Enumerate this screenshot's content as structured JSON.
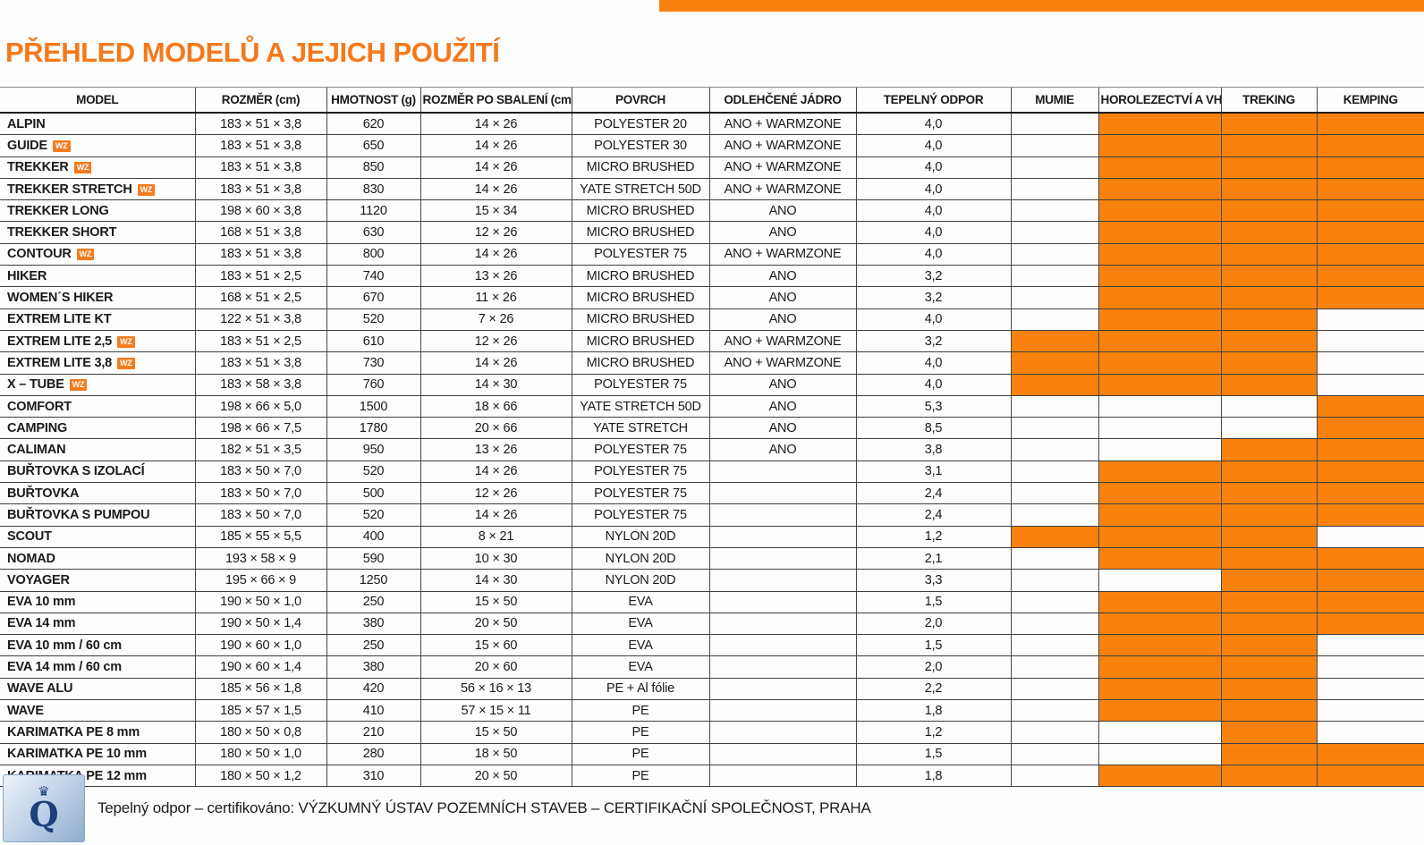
{
  "page": {
    "title": "PŘEHLED MODELŮ A JEJICH POUŽITÍ"
  },
  "colors": {
    "accent_orange": "#F4791B",
    "cell_orange": "#F8820D",
    "badge_orange": "#F47B20",
    "logo_blue": "#1d3f7a"
  },
  "badge_label": "WZ",
  "icons": {
    "crown": "♛",
    "quality_letter": "Q"
  },
  "table": {
    "columns": [
      "MODEL",
      "ROZMĚR (cm)",
      "HMOTNOST (g)",
      "ROZMĚR PO SBALENÍ (cm)",
      "POVRCH",
      "ODLEHČENÉ JÁDRO",
      "TEPELNÝ ODPOR",
      "MUMIE",
      "HOROLEZECTVÍ A VHT",
      "TREKING",
      "KEMPING"
    ],
    "rows": [
      {
        "model": "ALPIN",
        "wz": false,
        "rozmer": "183 × 51 × 3,8",
        "hmotnost": "620",
        "sbaleni": "14 × 26",
        "povrch": "POLYESTER 20",
        "jadro": "ANO + WARMZONE",
        "odpor": "4,0",
        "mumie": false,
        "horolezectvi": true,
        "treking": true,
        "kemping": true
      },
      {
        "model": "GUIDE",
        "wz": true,
        "rozmer": "183 × 51 × 3,8",
        "hmotnost": "650",
        "sbaleni": "14 × 26",
        "povrch": "POLYESTER 30",
        "jadro": "ANO + WARMZONE",
        "odpor": "4,0",
        "mumie": false,
        "horolezectvi": true,
        "treking": true,
        "kemping": true
      },
      {
        "model": "TREKKER",
        "wz": true,
        "rozmer": "183 × 51 × 3,8",
        "hmotnost": "850",
        "sbaleni": "14 × 26",
        "povrch": "MICRO BRUSHED",
        "jadro": "ANO + WARMZONE",
        "odpor": "4,0",
        "mumie": false,
        "horolezectvi": true,
        "treking": true,
        "kemping": true
      },
      {
        "model": "TREKKER STRETCH",
        "wz": true,
        "rozmer": "183 × 51 × 3,8",
        "hmotnost": "830",
        "sbaleni": "14 × 26",
        "povrch": "YATE STRETCH 50D",
        "jadro": "ANO + WARMZONE",
        "odpor": "4,0",
        "mumie": false,
        "horolezectvi": true,
        "treking": true,
        "kemping": true
      },
      {
        "model": "TREKKER LONG",
        "wz": false,
        "rozmer": "198 × 60 × 3,8",
        "hmotnost": "1120",
        "sbaleni": "15 × 34",
        "povrch": "MICRO BRUSHED",
        "jadro": "ANO",
        "odpor": "4,0",
        "mumie": false,
        "horolezectvi": true,
        "treking": true,
        "kemping": true
      },
      {
        "model": "TREKKER SHORT",
        "wz": false,
        "rozmer": "168 × 51 × 3,8",
        "hmotnost": "630",
        "sbaleni": "12 × 26",
        "povrch": "MICRO BRUSHED",
        "jadro": "ANO",
        "odpor": "4,0",
        "mumie": false,
        "horolezectvi": true,
        "treking": true,
        "kemping": true
      },
      {
        "model": "CONTOUR",
        "wz": true,
        "rozmer": "183 × 51 × 3,8",
        "hmotnost": "800",
        "sbaleni": "14 × 26",
        "povrch": "POLYESTER 75",
        "jadro": "ANO + WARMZONE",
        "odpor": "4,0",
        "mumie": false,
        "horolezectvi": true,
        "treking": true,
        "kemping": true
      },
      {
        "model": "HIKER",
        "wz": false,
        "rozmer": "183 × 51 × 2,5",
        "hmotnost": "740",
        "sbaleni": "13 × 26",
        "povrch": "MICRO BRUSHED",
        "jadro": "ANO",
        "odpor": "3,2",
        "mumie": false,
        "horolezectvi": true,
        "treking": true,
        "kemping": true
      },
      {
        "model": "WOMEN´S HIKER",
        "wz": false,
        "rozmer": "168 × 51 × 2,5",
        "hmotnost": "670",
        "sbaleni": "11 × 26",
        "povrch": "MICRO BRUSHED",
        "jadro": "ANO",
        "odpor": "3,2",
        "mumie": false,
        "horolezectvi": true,
        "treking": true,
        "kemping": true
      },
      {
        "model": "EXTREM LITE KT",
        "wz": false,
        "rozmer": "122 × 51 × 3,8",
        "hmotnost": "520",
        "sbaleni": "7 × 26",
        "povrch": "MICRO BRUSHED",
        "jadro": "ANO",
        "odpor": "4,0",
        "mumie": false,
        "horolezectvi": true,
        "treking": true,
        "kemping": false
      },
      {
        "model": "EXTREM LITE 2,5",
        "wz": true,
        "rozmer": "183 × 51 × 2,5",
        "hmotnost": "610",
        "sbaleni": "12 × 26",
        "povrch": "MICRO BRUSHED",
        "jadro": "ANO + WARMZONE",
        "odpor": "3,2",
        "mumie": true,
        "horolezectvi": true,
        "treking": true,
        "kemping": false
      },
      {
        "model": "EXTREM LITE 3,8",
        "wz": true,
        "rozmer": "183 × 51 × 3,8",
        "hmotnost": "730",
        "sbaleni": "14 × 26",
        "povrch": "MICRO BRUSHED",
        "jadro": "ANO + WARMZONE",
        "odpor": "4,0",
        "mumie": true,
        "horolezectvi": true,
        "treking": true,
        "kemping": false
      },
      {
        "model": "X – TUBE",
        "wz": true,
        "rozmer": "183 × 58 × 3,8",
        "hmotnost": "760",
        "sbaleni": "14 × 30",
        "povrch": "POLYESTER 75",
        "jadro": "ANO",
        "odpor": "4,0",
        "mumie": true,
        "horolezectvi": true,
        "treking": true,
        "kemping": false
      },
      {
        "model": "COMFORT",
        "wz": false,
        "rozmer": "198 × 66 × 5,0",
        "hmotnost": "1500",
        "sbaleni": "18 × 66",
        "povrch": "YATE STRETCH 50D",
        "jadro": "ANO",
        "odpor": "5,3",
        "mumie": false,
        "horolezectvi": false,
        "treking": false,
        "kemping": true
      },
      {
        "model": "CAMPING",
        "wz": false,
        "rozmer": "198 × 66 × 7,5",
        "hmotnost": "1780",
        "sbaleni": "20 × 66",
        "povrch": "YATE STRETCH",
        "jadro": "ANO",
        "odpor": "8,5",
        "mumie": false,
        "horolezectvi": false,
        "treking": false,
        "kemping": true
      },
      {
        "model": "CALIMAN",
        "wz": false,
        "rozmer": "182 × 51 × 3,5",
        "hmotnost": "950",
        "sbaleni": "13 × 26",
        "povrch": "POLYESTER 75",
        "jadro": "ANO",
        "odpor": "3,8",
        "mumie": false,
        "horolezectvi": false,
        "treking": true,
        "kemping": true
      },
      {
        "model": "BUŘTOVKA S IZOLACÍ",
        "wz": false,
        "rozmer": "183 × 50 × 7,0",
        "hmotnost": "520",
        "sbaleni": "14 × 26",
        "povrch": "POLYESTER 75",
        "jadro": "",
        "odpor": "3,1",
        "mumie": false,
        "horolezectvi": true,
        "treking": true,
        "kemping": true
      },
      {
        "model": "BUŘTOVKA",
        "wz": false,
        "rozmer": "183 × 50 × 7,0",
        "hmotnost": "500",
        "sbaleni": "12 × 26",
        "povrch": "POLYESTER 75",
        "jadro": "",
        "odpor": "2,4",
        "mumie": false,
        "horolezectvi": true,
        "treking": true,
        "kemping": true
      },
      {
        "model": "BUŘTOVKA S PUMPOU",
        "wz": false,
        "rozmer": "183 × 50 × 7,0",
        "hmotnost": "520",
        "sbaleni": "14 × 26",
        "povrch": "POLYESTER 75",
        "jadro": "",
        "odpor": "2,4",
        "mumie": false,
        "horolezectvi": true,
        "treking": true,
        "kemping": true
      },
      {
        "model": "SCOUT",
        "wz": false,
        "rozmer": "185 × 55 × 5,5",
        "hmotnost": "400",
        "sbaleni": "8 × 21",
        "povrch": "NYLON 20D",
        "jadro": "",
        "odpor": "1,2",
        "mumie": true,
        "horolezectvi": true,
        "treking": true,
        "kemping": false
      },
      {
        "model": "NOMAD",
        "wz": false,
        "rozmer": "193 × 58 × 9",
        "hmotnost": "590",
        "sbaleni": "10 × 30",
        "povrch": "NYLON 20D",
        "jadro": "",
        "odpor": "2,1",
        "mumie": false,
        "horolezectvi": true,
        "treking": true,
        "kemping": true
      },
      {
        "model": "VOYAGER",
        "wz": false,
        "rozmer": "195 × 66 × 9",
        "hmotnost": "1250",
        "sbaleni": "14 × 30",
        "povrch": "NYLON 20D",
        "jadro": "",
        "odpor": "3,3",
        "mumie": false,
        "horolezectvi": false,
        "treking": true,
        "kemping": true
      },
      {
        "model": "EVA 10 mm",
        "wz": false,
        "rozmer": "190 × 50 × 1,0",
        "hmotnost": "250",
        "sbaleni": "15 × 50",
        "povrch": "EVA",
        "jadro": "",
        "odpor": "1,5",
        "mumie": false,
        "horolezectvi": true,
        "treking": true,
        "kemping": true
      },
      {
        "model": "EVA 14 mm",
        "wz": false,
        "rozmer": "190 × 50 × 1,4",
        "hmotnost": "380",
        "sbaleni": "20 × 50",
        "povrch": "EVA",
        "jadro": "",
        "odpor": "2,0",
        "mumie": false,
        "horolezectvi": true,
        "treking": true,
        "kemping": true
      },
      {
        "model": "EVA 10 mm / 60 cm",
        "wz": false,
        "rozmer": "190 × 60 × 1,0",
        "hmotnost": "250",
        "sbaleni": "15 × 60",
        "povrch": "EVA",
        "jadro": "",
        "odpor": "1,5",
        "mumie": false,
        "horolezectvi": true,
        "treking": true,
        "kemping": false
      },
      {
        "model": "EVA 14 mm / 60 cm",
        "wz": false,
        "rozmer": "190 × 60 × 1,4",
        "hmotnost": "380",
        "sbaleni": "20 × 60",
        "povrch": "EVA",
        "jadro": "",
        "odpor": "2,0",
        "mumie": false,
        "horolezectvi": true,
        "treking": true,
        "kemping": false
      },
      {
        "model": "WAVE ALU",
        "wz": false,
        "rozmer": "185 × 56 × 1,8",
        "hmotnost": "420",
        "sbaleni": "56 × 16 × 13",
        "povrch": "PE + Al fólie",
        "jadro": "",
        "odpor": "2,2",
        "mumie": false,
        "horolezectvi": true,
        "treking": true,
        "kemping": false
      },
      {
        "model": "WAVE",
        "wz": false,
        "rozmer": "185 × 57 × 1,5",
        "hmotnost": "410",
        "sbaleni": "57 × 15 × 11",
        "povrch": "PE",
        "jadro": "",
        "odpor": "1,8",
        "mumie": false,
        "horolezectvi": true,
        "treking": true,
        "kemping": false
      },
      {
        "model": "KARIMATKA PE 8 mm",
        "wz": false,
        "rozmer": "180 × 50 × 0,8",
        "hmotnost": "210",
        "sbaleni": "15 × 50",
        "povrch": "PE",
        "jadro": "",
        "odpor": "1,2",
        "mumie": false,
        "horolezectvi": false,
        "treking": true,
        "kemping": false
      },
      {
        "model": "KARIMATKA PE 10 mm",
        "wz": false,
        "rozmer": "180 × 50 × 1,0",
        "hmotnost": "280",
        "sbaleni": "18 × 50",
        "povrch": "PE",
        "jadro": "",
        "odpor": "1,5",
        "mumie": false,
        "horolezectvi": false,
        "treking": true,
        "kemping": true
      },
      {
        "model": "KARIMATKA PE 12 mm",
        "wz": false,
        "rozmer": "180 × 50 × 1,2",
        "hmotnost": "310",
        "sbaleni": "20 × 50",
        "povrch": "PE",
        "jadro": "",
        "odpor": "1,8",
        "mumie": false,
        "horolezectvi": true,
        "treking": true,
        "kemping": true
      }
    ]
  },
  "footer": {
    "text": "Tepelný odpor – certifikováno: VÝZKUMNÝ ÚSTAV POZEMNÍCH STAVEB – CERTIFIKAČNÍ SPOLEČNOST, PRAHA"
  }
}
